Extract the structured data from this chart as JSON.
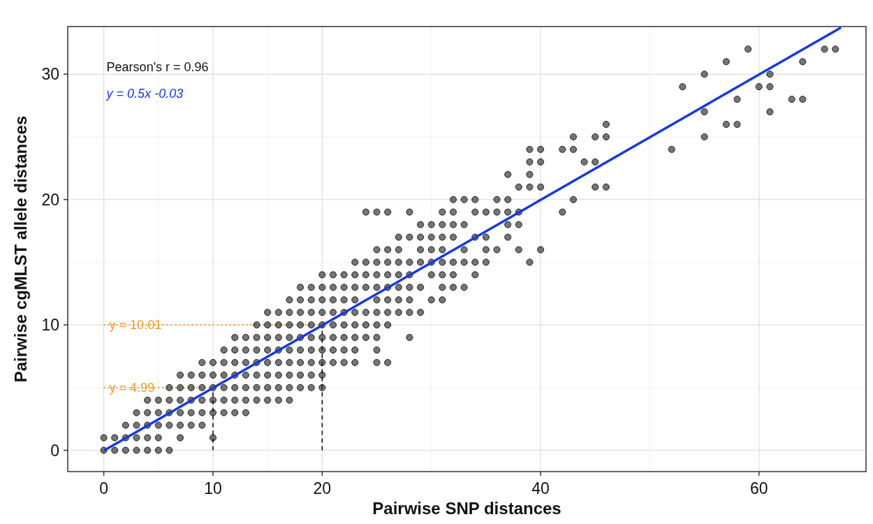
{
  "chart_data": {
    "type": "scatter",
    "xlabel": "Pairwise SNP distances",
    "ylabel": "Pairwise cgMLST allele distances",
    "xlim": [
      -3.3,
      69.8
    ],
    "ylim": [
      -1.7,
      33.8
    ],
    "xticks": [
      0,
      10,
      20,
      40,
      60
    ],
    "yticks": [
      0,
      10,
      20,
      30
    ],
    "grid": true,
    "annotations": [
      "Pearson's r = 0.96",
      "y = 0.5x -0.03"
    ],
    "ref_lines": [
      {
        "axis": "y",
        "value": 10.01,
        "label": "y = 10.01",
        "color": "#f39c1e",
        "line_style": "dotted"
      },
      {
        "axis": "y",
        "value": 4.99,
        "label": "y = 4.99",
        "color": "#f39c1e",
        "line_style": "dotted"
      },
      {
        "axis": "x",
        "value": 10,
        "color": "#000000",
        "line_style": "dashed"
      },
      {
        "axis": "x",
        "value": 20,
        "color": "#000000",
        "line_style": "dashed"
      }
    ],
    "series": [
      {
        "marker": "circle",
        "color": "#1a1a1a",
        "x": [
          0,
          1,
          2,
          3,
          4,
          5,
          6,
          0,
          1,
          2,
          3,
          4,
          5,
          7,
          10,
          2,
          3,
          4,
          5,
          6,
          7,
          8,
          9,
          3,
          4,
          5,
          6,
          7,
          8,
          9,
          10,
          11,
          12,
          13,
          4,
          5,
          6,
          7,
          8,
          9,
          10,
          11,
          12,
          13,
          14,
          15,
          16,
          17,
          6,
          7,
          8,
          9,
          10,
          11,
          12,
          13,
          14,
          15,
          16,
          17,
          18,
          19,
          20,
          7,
          8,
          9,
          10,
          11,
          12,
          13,
          14,
          15,
          16,
          17,
          18,
          19,
          20,
          9,
          10,
          11,
          12,
          13,
          14,
          15,
          16,
          17,
          18,
          19,
          20,
          21,
          22,
          23,
          25,
          26,
          11,
          12,
          13,
          14,
          15,
          16,
          17,
          18,
          19,
          20,
          21,
          22,
          23,
          25,
          12,
          13,
          14,
          15,
          16,
          17,
          18,
          19,
          20,
          21,
          22,
          23,
          24,
          25,
          28,
          14,
          15,
          16,
          17,
          18,
          19,
          20,
          21,
          22,
          23,
          24,
          25,
          26,
          15,
          16,
          17,
          18,
          19,
          20,
          21,
          22,
          23,
          24,
          25,
          26,
          27,
          28,
          29,
          17,
          18,
          19,
          20,
          21,
          22,
          23,
          25,
          26,
          27,
          28,
          30,
          31,
          18,
          19,
          20,
          21,
          22,
          23,
          24,
          25,
          26,
          27,
          28,
          29,
          31,
          32,
          33,
          20,
          21,
          22,
          23,
          24,
          25,
          26,
          27,
          28,
          30,
          31,
          32,
          34,
          23,
          24,
          25,
          26,
          27,
          28,
          29,
          30,
          31,
          32,
          33,
          34,
          35,
          39,
          25,
          26,
          27,
          29,
          30,
          31,
          33,
          35,
          36,
          38,
          40,
          27,
          28,
          29,
          30,
          31,
          32,
          34,
          35,
          37,
          29,
          30,
          31,
          32,
          33,
          37,
          38,
          24,
          25,
          26,
          28,
          31,
          32,
          34,
          35,
          36,
          37,
          38,
          42,
          32,
          33,
          34,
          36,
          37,
          43,
          38,
          39,
          40,
          45,
          46,
          37,
          39,
          39,
          40,
          44,
          45,
          39,
          40,
          42,
          43,
          52,
          43,
          45,
          46,
          55,
          46,
          57,
          58,
          55,
          61,
          58,
          63,
          64,
          53,
          60,
          61,
          55,
          61,
          57,
          64,
          59,
          66,
          67
        ],
        "values": [
          0,
          0,
          0,
          0,
          0,
          0,
          0,
          1,
          1,
          1,
          1,
          1,
          1,
          1,
          1,
          2,
          2,
          2,
          2,
          2,
          2,
          2,
          2,
          3,
          3,
          3,
          3,
          3,
          3,
          3,
          3,
          3,
          3,
          3,
          4,
          4,
          4,
          4,
          4,
          4,
          4,
          4,
          4,
          4,
          4,
          4,
          4,
          4,
          5,
          5,
          5,
          5,
          5,
          5,
          5,
          5,
          5,
          5,
          5,
          5,
          5,
          5,
          5,
          6,
          6,
          6,
          6,
          6,
          6,
          6,
          6,
          6,
          6,
          6,
          6,
          6,
          6,
          7,
          7,
          7,
          7,
          7,
          7,
          7,
          7,
          7,
          7,
          7,
          7,
          7,
          7,
          7,
          7,
          7,
          8,
          8,
          8,
          8,
          8,
          8,
          8,
          8,
          8,
          8,
          8,
          8,
          8,
          8,
          9,
          9,
          9,
          9,
          9,
          9,
          9,
          9,
          9,
          9,
          9,
          9,
          9,
          9,
          9,
          10,
          10,
          10,
          10,
          10,
          10,
          10,
          10,
          10,
          10,
          10,
          10,
          10,
          11,
          11,
          11,
          11,
          11,
          11,
          11,
          11,
          11,
          11,
          11,
          11,
          11,
          11,
          11,
          12,
          12,
          12,
          12,
          12,
          12,
          12,
          12,
          12,
          12,
          12,
          12,
          12,
          13,
          13,
          13,
          13,
          13,
          13,
          13,
          13,
          13,
          13,
          13,
          13,
          13,
          13,
          13,
          14,
          14,
          14,
          14,
          14,
          14,
          14,
          14,
          14,
          14,
          14,
          14,
          14,
          15,
          15,
          15,
          15,
          15,
          15,
          15,
          15,
          15,
          15,
          15,
          15,
          15,
          15,
          16,
          16,
          16,
          16,
          16,
          16,
          16,
          16,
          16,
          16,
          16,
          17,
          17,
          17,
          17,
          17,
          17,
          17,
          17,
          17,
          18,
          18,
          18,
          18,
          18,
          18,
          18,
          19,
          19,
          19,
          19,
          19,
          19,
          19,
          19,
          19,
          19,
          19,
          19,
          20,
          20,
          20,
          20,
          20,
          20,
          21,
          21,
          21,
          21,
          21,
          22,
          22,
          23,
          23,
          23,
          23,
          24,
          24,
          24,
          24,
          24,
          25,
          25,
          25,
          25,
          26,
          26,
          26,
          27,
          27,
          28,
          28,
          28,
          29,
          29,
          29,
          30,
          30,
          31,
          31,
          32,
          32,
          32
        ]
      },
      {
        "type": "line",
        "color": "#1538e6",
        "x": [
          0,
          67.5
        ],
        "values": [
          -0.03,
          33.72
        ]
      }
    ]
  }
}
